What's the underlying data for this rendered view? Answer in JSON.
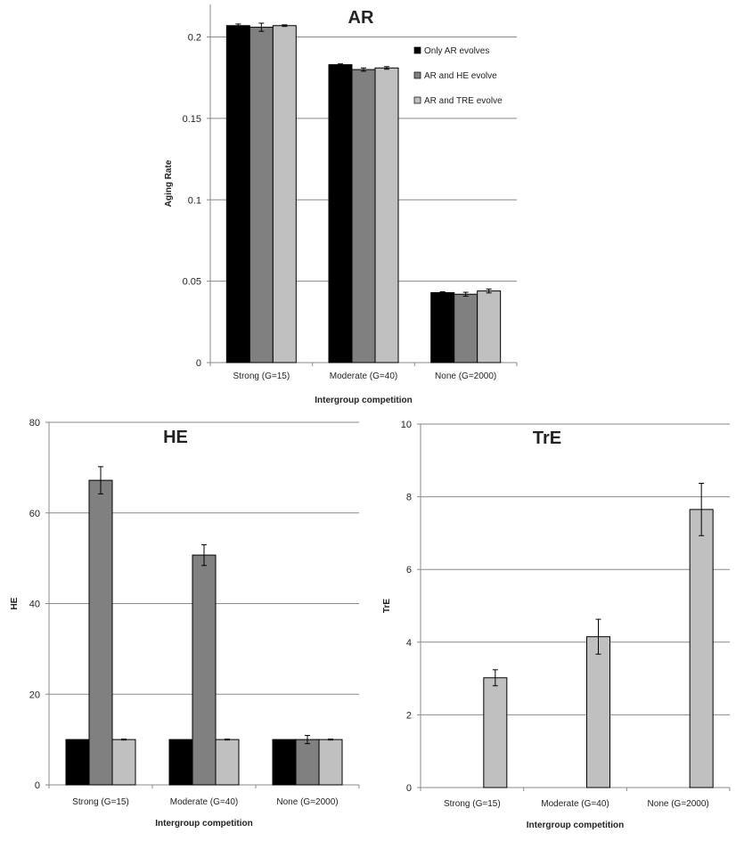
{
  "colors": {
    "Only AR evolves": "#000000",
    "AR and HE evolve": "#808080",
    "AR and TRE evolve": "#c0c0c0"
  },
  "chart_data": [
    {
      "type": "bar",
      "title": "AR",
      "xlabel": "Intergroup competition",
      "ylabel": "Aging Rate",
      "ylim": [
        0,
        0.22
      ],
      "yticks": [
        "0",
        "0.05",
        "0.1",
        "0.15",
        "0.2"
      ],
      "ytick_values": [
        0,
        0.05,
        0.1,
        0.15,
        0.2
      ],
      "grid": true,
      "legend": "right",
      "categories": [
        "Strong (G=15)",
        "Moderate (G=40)",
        "None (G=2000)"
      ],
      "series": [
        {
          "name": "Only AR evolves",
          "values": [
            0.207,
            0.183,
            0.043
          ],
          "errors": [
            0.001,
            0.0005,
            0.0005
          ]
        },
        {
          "name": "AR and HE evolve",
          "values": [
            0.206,
            0.18,
            0.042
          ],
          "errors": [
            0.0025,
            0.001,
            0.0012
          ]
        },
        {
          "name": "AR and TRE evolve",
          "values": [
            0.207,
            0.181,
            0.044
          ],
          "errors": [
            0.0005,
            0.0008,
            0.0012
          ]
        }
      ]
    },
    {
      "type": "bar",
      "title": "HE",
      "xlabel": "Intergroup competition",
      "ylabel": "HE",
      "ylim": [
        0,
        80
      ],
      "yticks": [
        "0",
        "20",
        "40",
        "60",
        "80"
      ],
      "ytick_values": [
        0,
        20,
        40,
        60,
        80
      ],
      "grid": true,
      "categories": [
        "Strong (G=15)",
        "Moderate (G=40)",
        "None (G=2000)"
      ],
      "series": [
        {
          "values": [
            10,
            10,
            10
          ],
          "errors": [
            0,
            0,
            0
          ]
        },
        {
          "values": [
            67.2,
            50.7,
            10
          ],
          "errors": [
            3.0,
            2.3,
            0.9
          ]
        },
        {
          "values": [
            10,
            10,
            10
          ],
          "errors": [
            0.1,
            0.1,
            0.1
          ]
        }
      ]
    },
    {
      "type": "bar",
      "title": "TrE",
      "xlabel": "Intergroup competition",
      "ylabel": "TrE",
      "ylim": [
        0,
        10
      ],
      "yticks": [
        "0",
        "2",
        "4",
        "6",
        "8",
        "10"
      ],
      "ytick_values": [
        0,
        2,
        4,
        6,
        8,
        10
      ],
      "grid": true,
      "categories": [
        "Strong (G=15)",
        "Moderate (G=40)",
        "None (G=2000)"
      ],
      "series": [
        {
          "values": [
            0,
            0,
            0
          ],
          "errors": [
            0,
            0,
            0
          ]
        },
        {
          "values": [
            0,
            0,
            0
          ],
          "errors": [
            0,
            0,
            0
          ]
        },
        {
          "values": [
            3.02,
            4.15,
            7.65
          ],
          "errors": [
            0.22,
            0.48,
            0.72
          ]
        }
      ]
    }
  ]
}
